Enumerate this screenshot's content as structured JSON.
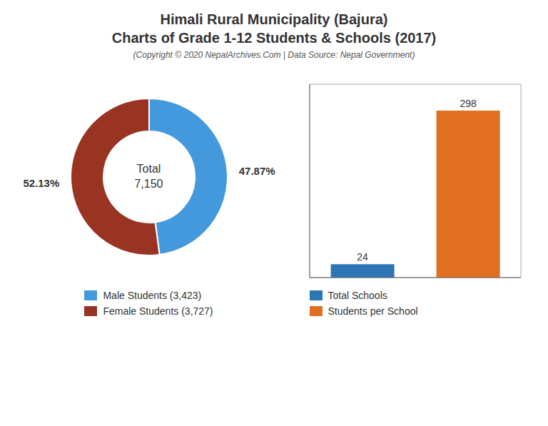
{
  "title": "Himali Rural Municipality (Bajura)\nCharts of Grade 1-12 Students & Schools (2017)",
  "subtitle": "(Copyright © 2020 NepalArchives.Com | Data Source: Nepal Government)",
  "chart_data": [
    {
      "type": "donut",
      "categories": [
        "Male Students (3,423)",
        "Female Students (3,727)"
      ],
      "values": [
        47.87,
        52.13
      ],
      "value_labels": [
        "47.87%",
        "52.13%"
      ],
      "colors": [
        "#4499DD",
        "#993322"
      ],
      "data_labels": true,
      "annotations": [
        "Total",
        "7,150"
      ],
      "legend": "bottom"
    },
    {
      "type": "bar",
      "categories": [
        "Total Schools",
        "Students per School"
      ],
      "values": [
        24,
        298
      ],
      "colors": [
        "#2E75B6",
        "#E07020"
      ],
      "ylim": [
        0,
        345
      ],
      "data_labels": true,
      "tick_labels": false,
      "legend": "bottom"
    }
  ]
}
